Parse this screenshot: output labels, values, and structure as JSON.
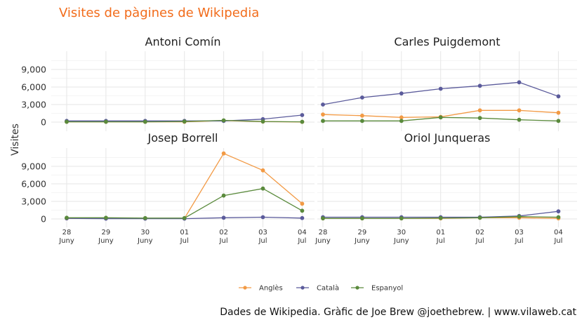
{
  "title": "Visites de pàgines de Wikipedia",
  "caption": "Dades de Wikipedia. Gràfic de Joe Brew @joethebrew. | www.vilaweb.cat",
  "colors": {
    "Anglès": "#f29a45",
    "Català": "#5b5b9b",
    "Espanyol": "#5a8a3c",
    "title": "#f26c1b",
    "grid": "#e6e6e6"
  },
  "chart_data": {
    "type": "line",
    "ylabel": "Visites",
    "ylim": [
      0,
      11500
    ],
    "yticks": [
      0,
      3000,
      6000,
      9000
    ],
    "ytick_labels": [
      "0",
      "3,000",
      "6,000",
      "9,000"
    ],
    "x": [
      "28 Juny",
      "29 Juny",
      "30 Juny",
      "01 Jul",
      "02 Jul",
      "03 Jul",
      "04 Jul"
    ],
    "x_day": [
      "28",
      "29",
      "30",
      "01",
      "02",
      "03",
      "04"
    ],
    "x_month": [
      "Juny",
      "Juny",
      "Juny",
      "Jul",
      "Jul",
      "Jul",
      "Jul"
    ],
    "grid": true,
    "legend_position": "bottom",
    "legend": [
      "Anglès",
      "Català",
      "Espanyol"
    ],
    "panels": [
      {
        "name": "Antoni Comín",
        "series": [
          {
            "name": "Anglès",
            "values": [
              50,
              50,
              50,
              50,
              250,
              80,
              30
            ]
          },
          {
            "name": "Català",
            "values": [
              200,
              200,
              200,
              200,
              200,
              500,
              1200
            ]
          },
          {
            "name": "Espanyol",
            "values": [
              50,
              50,
              50,
              100,
              300,
              100,
              50
            ]
          }
        ]
      },
      {
        "name": "Carles Puigdemont",
        "series": [
          {
            "name": "Anglès",
            "values": [
              1300,
              1100,
              800,
              900,
              2000,
              2000,
              1600
            ]
          },
          {
            "name": "Català",
            "values": [
              3000,
              4200,
              4900,
              5700,
              6200,
              6800,
              4400
            ]
          },
          {
            "name": "Espanyol",
            "values": [
              200,
              200,
              200,
              800,
              700,
              400,
              200
            ]
          }
        ]
      },
      {
        "name": "Josep Borrell",
        "series": [
          {
            "name": "Anglès",
            "values": [
              100,
              100,
              100,
              100,
              11200,
              8300,
              2600
            ]
          },
          {
            "name": "Català",
            "values": [
              100,
              50,
              50,
              50,
              200,
              300,
              150
            ]
          },
          {
            "name": "Espanyol",
            "values": [
              200,
              200,
              150,
              150,
              4000,
              5200,
              1400
            ]
          }
        ]
      },
      {
        "name": "Oriol Junqueras",
        "series": [
          {
            "name": "Anglès",
            "values": [
              100,
              100,
              100,
              100,
              200,
              200,
              100
            ]
          },
          {
            "name": "Català",
            "values": [
              300,
              300,
              300,
              300,
              300,
              500,
              1300
            ]
          },
          {
            "name": "Espanyol",
            "values": [
              100,
              100,
              100,
              150,
              200,
              400,
              300
            ]
          }
        ]
      }
    ]
  }
}
